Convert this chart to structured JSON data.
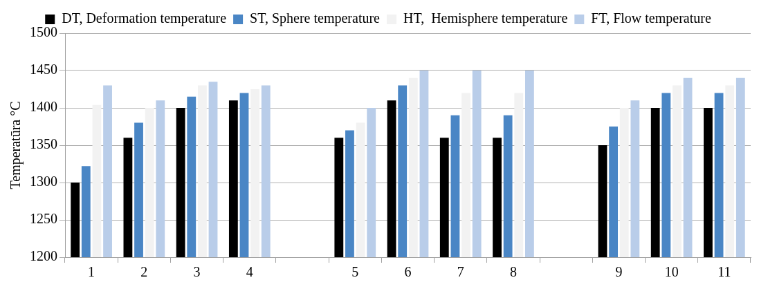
{
  "chart_data": {
    "type": "bar",
    "ylabel": "Temperatūra °C",
    "categories": [
      "1",
      "2",
      "3",
      "4",
      null,
      "5",
      "6",
      "7",
      "8",
      null,
      "9",
      "10",
      "11"
    ],
    "series": [
      {
        "name": "DT, Deformation temperature",
        "color": "#000000",
        "values": [
          1300,
          1360,
          1400,
          1410,
          null,
          1360,
          1410,
          1360,
          1360,
          null,
          1350,
          1400,
          1400
        ]
      },
      {
        "name": "ST, Sphere temperature",
        "color": "#4a86c5",
        "values": [
          1322,
          1380,
          1415,
          1420,
          null,
          1370,
          1430,
          1390,
          1390,
          null,
          1375,
          1420,
          1420
        ]
      },
      {
        "name": "HT,  Hemisphere temperature",
        "color": "#f2f2f2",
        "values": [
          1404,
          1400,
          1430,
          1425,
          null,
          1380,
          1440,
          1420,
          1420,
          null,
          1400,
          1430,
          1430
        ]
      },
      {
        "name": "FT, Flow temperature",
        "color": "#b9cde9",
        "values": [
          1430,
          1410,
          1435,
          1430,
          null,
          1400,
          1450,
          1450,
          1450,
          null,
          1410,
          1440,
          1440
        ]
      }
    ],
    "ylim": [
      1200,
      1500
    ],
    "yticks": [
      1200,
      1250,
      1300,
      1350,
      1400,
      1450,
      1500
    ],
    "grid": "y",
    "legend": "top"
  }
}
